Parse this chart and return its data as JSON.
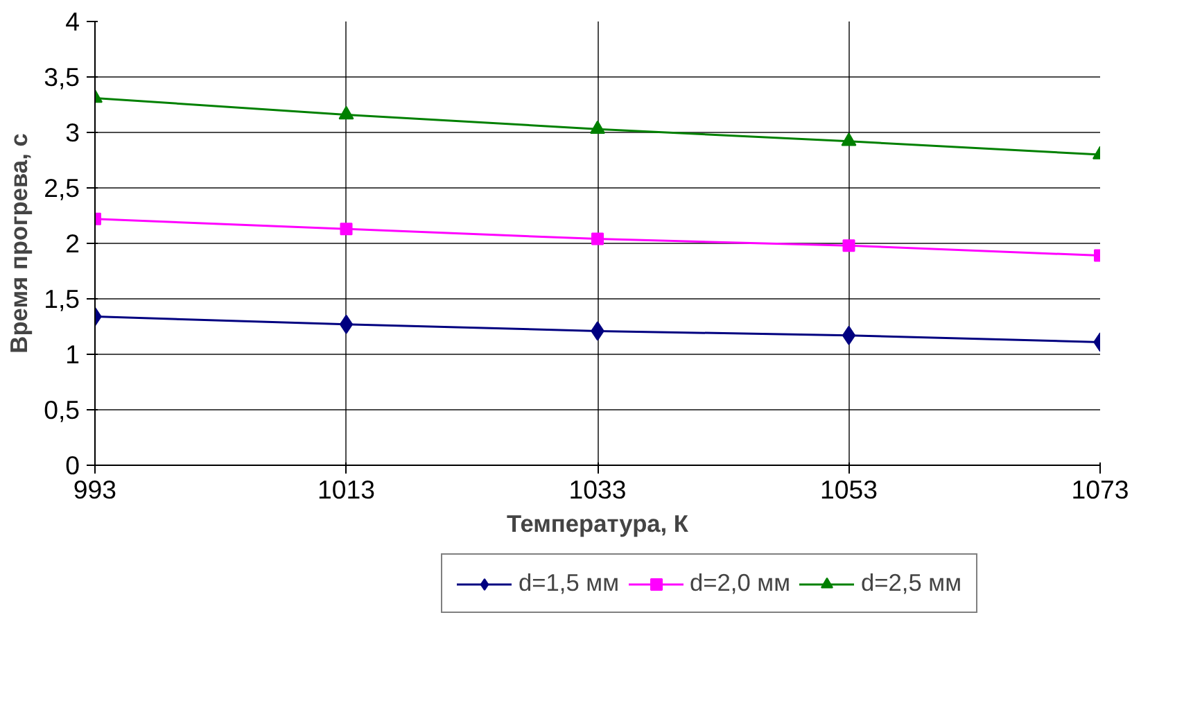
{
  "chart_data": {
    "type": "line",
    "xlabel": "Температура, К",
    "ylabel": "Время прогрева, с",
    "xlim": [
      993,
      1073
    ],
    "xticks": [
      993,
      1013,
      1033,
      1053,
      1073
    ],
    "ylim": [
      0,
      4
    ],
    "yticks": [
      0,
      {
        "value": 0.5,
        "label": "0,5"
      },
      1,
      {
        "value": 1.5,
        "label": "1,5"
      },
      2,
      {
        "value": 2.5,
        "label": "2,5"
      },
      3,
      {
        "value": 3.5,
        "label": "3,5"
      },
      4
    ],
    "x": [
      993,
      1013,
      1033,
      1053,
      1073
    ],
    "series": [
      {
        "name": "d=1,5 мм",
        "color": "#000080",
        "marker": "diamond",
        "values": [
          1.34,
          1.27,
          1.21,
          1.17,
          1.11
        ]
      },
      {
        "name": "d=2,0 мм",
        "color": "#ff00ff",
        "marker": "square",
        "values": [
          2.22,
          2.13,
          2.04,
          1.98,
          1.89
        ]
      },
      {
        "name": "d=2,5 мм",
        "color": "#008000",
        "marker": "triangle",
        "values": [
          3.31,
          3.16,
          3.03,
          2.92,
          2.8
        ]
      }
    ],
    "grid": true,
    "legend": "bottom",
    "line_style": "solid"
  }
}
